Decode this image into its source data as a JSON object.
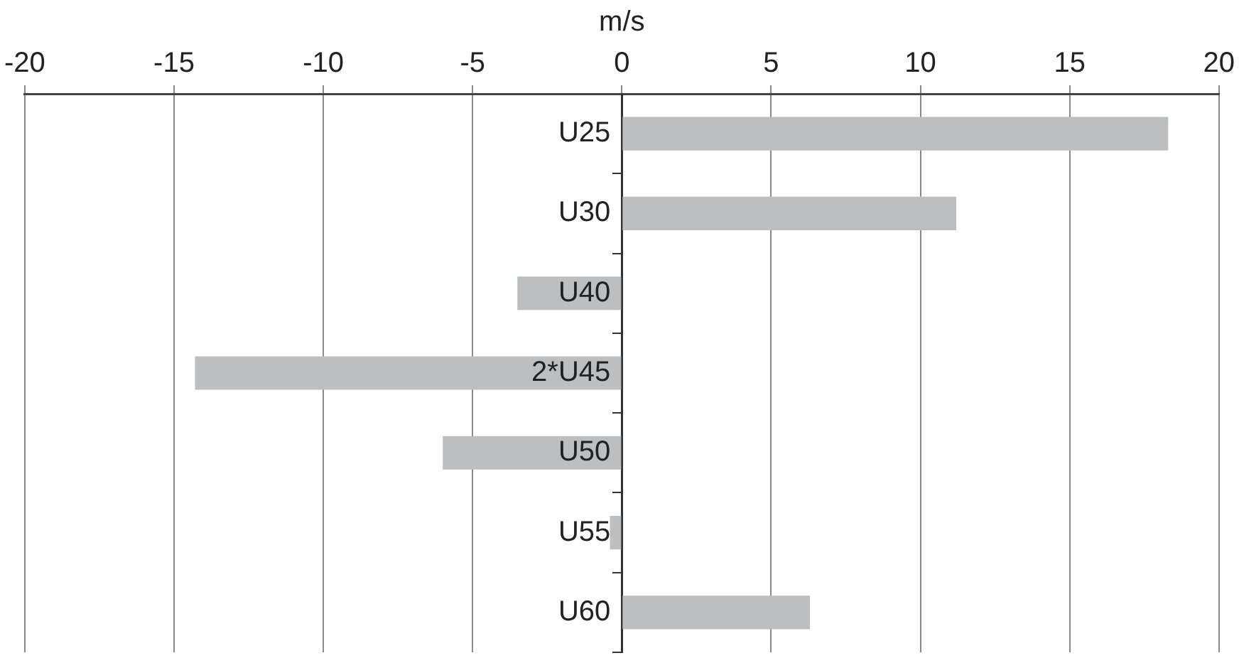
{
  "chart_data": {
    "type": "bar",
    "orientation": "horizontal",
    "xlabel": "m/s",
    "categories": [
      "U25",
      "U30",
      "U40",
      "2*U45",
      "U50",
      "U55",
      "U60"
    ],
    "values": [
      18.3,
      11.2,
      -3.5,
      -14.3,
      -6.0,
      -0.4,
      6.3
    ],
    "color": "#bdbec0",
    "xlim": [
      -20,
      20
    ],
    "xticks": [
      -20,
      -15,
      -10,
      -5,
      0,
      5,
      10,
      15,
      20
    ],
    "grid": "x"
  }
}
